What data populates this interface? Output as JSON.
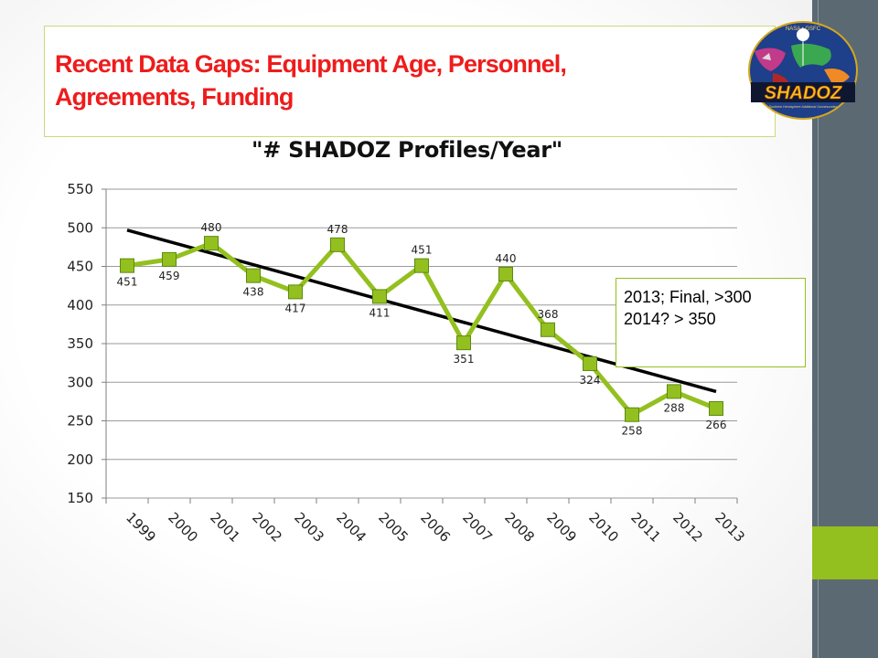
{
  "slide": {
    "title_line1": "Recent Data Gaps:  Equipment Age, Personnel,",
    "title_line2": "Agreements, Funding"
  },
  "logo": {
    "arc_text": "NASA • GSFC",
    "wordmark": "SHADOZ",
    "tagline": "Southern Hemisphere Additional Ozonesondes"
  },
  "note": {
    "line1": "2013; Final, >300",
    "line2": "2014? > 350"
  },
  "colors": {
    "series_line": "#93c01f",
    "marker_fill": "#93c01f",
    "marker_stroke": "#5d8a12",
    "trend_line": "#000000",
    "title_red": "#ee1c1c",
    "sidebar": "#5b6a72",
    "sidebar_accent": "#93c01f"
  },
  "chart_data": {
    "type": "line",
    "title": "\"# SHADOZ Profiles/Year\"",
    "categories": [
      "1999",
      "2000",
      "2001",
      "2002",
      "2003",
      "2004",
      "2005",
      "2006",
      "2007",
      "2008",
      "2009",
      "2010",
      "2011",
      "2012",
      "2013"
    ],
    "values": [
      451,
      459,
      480,
      438,
      417,
      478,
      411,
      451,
      351,
      440,
      368,
      324,
      258,
      288,
      266
    ],
    "data_labels": [
      "451",
      "459",
      "480",
      "438",
      "417",
      "478",
      "411",
      "451",
      "351",
      "440",
      "368",
      "324",
      "258",
      "288",
      "266"
    ],
    "ylim": [
      150,
      550
    ],
    "yticks": [
      550,
      500,
      450,
      400,
      350,
      300,
      250,
      200,
      150
    ],
    "trendline": {
      "start": 497,
      "end": 288
    },
    "grid": "horizontal",
    "legend": "none",
    "marker": "square"
  }
}
